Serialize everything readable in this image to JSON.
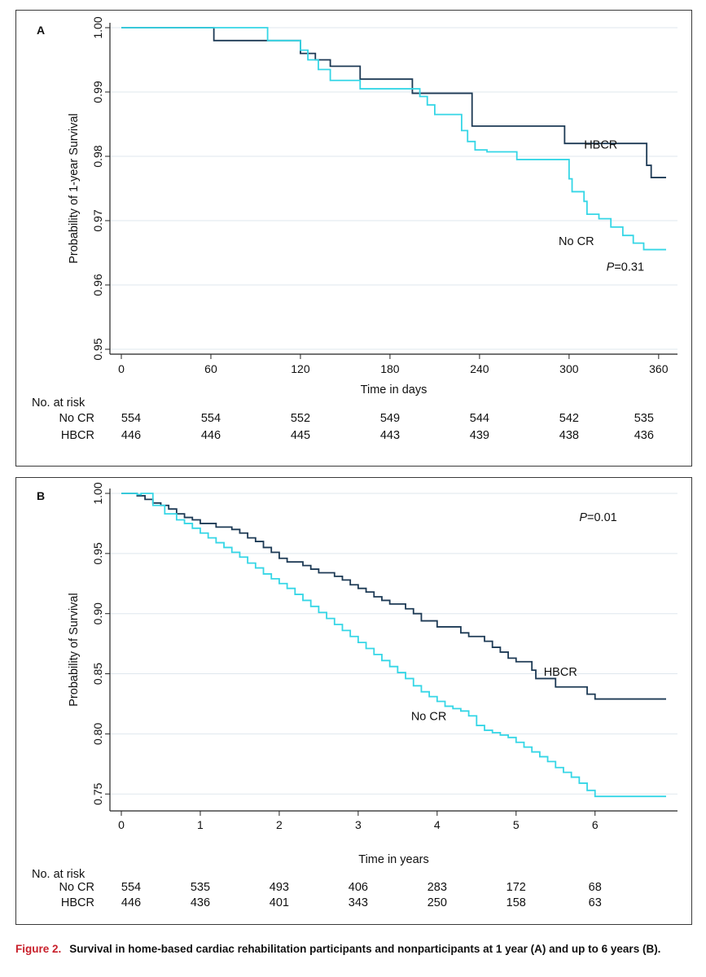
{
  "caption": {
    "figure_label": "Figure 2.",
    "text": "Survival in home-based cardiac rehabilitation participants and nonparticipants at 1 year (A) and up to 6 years (B)."
  },
  "colors": {
    "hbcr": "#1d3a55",
    "nocr": "#35d6e6",
    "grid": "#dfe7ee",
    "axis": "#222222"
  },
  "chart_data": [
    {
      "panel": "A",
      "type": "line",
      "step": true,
      "xlabel": "Time in days",
      "ylabel": "Probability of 1-year Survival",
      "xlim": [
        0,
        365
      ],
      "ylim": [
        0.95,
        1.0
      ],
      "xticks": [
        0,
        60,
        120,
        180,
        240,
        300,
        360
      ],
      "xtick_labels": [
        "0",
        "60",
        "120",
        "180",
        "240",
        "300",
        "360"
      ],
      "yticks": [
        0.95,
        0.96,
        0.97,
        0.98,
        0.99,
        1.0
      ],
      "ytick_labels": [
        "0.95",
        "0.96",
        "0.97",
        "0.98",
        "0.99",
        "1.00"
      ],
      "series": [
        {
          "name": "HBCR",
          "color_key": "hbcr",
          "x": [
            0,
            60,
            62,
            118,
            120,
            130,
            140,
            160,
            195,
            230,
            235,
            295,
            297,
            350,
            352,
            355,
            365
          ],
          "y": [
            1.0,
            1.0,
            0.998,
            0.998,
            0.996,
            0.995,
            0.994,
            0.992,
            0.9898,
            0.9898,
            0.9847,
            0.9847,
            0.982,
            0.982,
            0.9786,
            0.9767,
            0.9767
          ]
        },
        {
          "name": "No CR",
          "color_key": "nocr",
          "x": [
            0,
            95,
            98,
            118,
            120,
            125,
            132,
            140,
            160,
            195,
            200,
            205,
            210,
            218,
            228,
            232,
            237,
            245,
            265,
            295,
            300,
            302,
            305,
            310,
            312,
            320,
            328,
            336,
            343,
            350,
            365
          ],
          "y": [
            1.0,
            1.0,
            0.998,
            0.998,
            0.9965,
            0.995,
            0.9935,
            0.9918,
            0.9905,
            0.9905,
            0.9893,
            0.988,
            0.9865,
            0.9865,
            0.984,
            0.9823,
            0.981,
            0.9807,
            0.9795,
            0.9795,
            0.9765,
            0.9745,
            0.9745,
            0.973,
            0.971,
            0.9703,
            0.969,
            0.9677,
            0.9665,
            0.9655,
            0.9655
          ]
        }
      ],
      "annotations": [
        {
          "text": "HBCR",
          "x": 310,
          "y": 0.9812
        },
        {
          "text": "No CR",
          "x": 293,
          "y": 0.9662
        },
        {
          "text": "P=0.31",
          "x": 325,
          "y": 0.9622
        }
      ],
      "risk_table": {
        "title": "No. at risk",
        "rows": [
          {
            "label": "No CR",
            "values": [
              "554",
              "554",
              "552",
              "549",
              "544",
              "542",
              "535"
            ]
          },
          {
            "label": "HBCR",
            "values": [
              "446",
              "446",
              "445",
              "443",
              "439",
              "438",
              "436"
            ]
          }
        ]
      }
    },
    {
      "panel": "B",
      "type": "line",
      "step": true,
      "xlabel": "Time in years",
      "ylabel": "Probability of Survival",
      "xlim": [
        0,
        6.9
      ],
      "ylim": [
        0.74,
        1.0
      ],
      "xticks": [
        0,
        1,
        2,
        3,
        4,
        5,
        6
      ],
      "xtick_labels": [
        "0",
        "1",
        "2",
        "3",
        "4",
        "5",
        "6"
      ],
      "yticks": [
        0.75,
        0.8,
        0.85,
        0.9,
        0.95,
        1.0
      ],
      "ytick_labels": [
        "0.75",
        "0.80",
        "0.85",
        "0.90",
        "0.95",
        "1.00"
      ],
      "series": [
        {
          "name": "HBCR",
          "color_key": "hbcr",
          "x": [
            0,
            0.2,
            0.3,
            0.4,
            0.5,
            0.6,
            0.7,
            0.8,
            0.9,
            1.0,
            1.2,
            1.4,
            1.5,
            1.6,
            1.7,
            1.8,
            1.9,
            2.0,
            2.1,
            2.3,
            2.4,
            2.5,
            2.7,
            2.8,
            2.9,
            3.0,
            3.1,
            3.2,
            3.3,
            3.4,
            3.6,
            3.7,
            3.8,
            4.0,
            4.3,
            4.4,
            4.6,
            4.7,
            4.8,
            4.9,
            5.0,
            5.2,
            5.25,
            5.5,
            5.9,
            6.0,
            6.9
          ],
          "y": [
            1.0,
            0.998,
            0.995,
            0.992,
            0.99,
            0.987,
            0.983,
            0.98,
            0.978,
            0.975,
            0.972,
            0.97,
            0.967,
            0.963,
            0.96,
            0.955,
            0.951,
            0.946,
            0.943,
            0.94,
            0.937,
            0.934,
            0.931,
            0.928,
            0.924,
            0.921,
            0.918,
            0.914,
            0.911,
            0.908,
            0.904,
            0.9,
            0.894,
            0.889,
            0.884,
            0.881,
            0.877,
            0.872,
            0.868,
            0.863,
            0.86,
            0.853,
            0.846,
            0.839,
            0.833,
            0.829,
            0.829
          ]
        },
        {
          "name": "No CR",
          "color_key": "nocr",
          "x": [
            0,
            0.2,
            0.25,
            0.4,
            0.55,
            0.7,
            0.8,
            0.9,
            1.0,
            1.1,
            1.2,
            1.3,
            1.4,
            1.5,
            1.6,
            1.7,
            1.8,
            1.9,
            2.0,
            2.1,
            2.2,
            2.3,
            2.4,
            2.5,
            2.6,
            2.7,
            2.8,
            2.9,
            3.0,
            3.1,
            3.2,
            3.3,
            3.4,
            3.5,
            3.6,
            3.7,
            3.8,
            3.9,
            4.0,
            4.1,
            4.2,
            4.3,
            4.4,
            4.5,
            4.6,
            4.7,
            4.8,
            4.9,
            5.0,
            5.1,
            5.2,
            5.3,
            5.4,
            5.5,
            5.6,
            5.7,
            5.8,
            5.9,
            6.0,
            6.9
          ],
          "y": [
            1.0,
            0.999,
            1.0,
            0.99,
            0.983,
            0.978,
            0.975,
            0.971,
            0.967,
            0.963,
            0.959,
            0.955,
            0.951,
            0.947,
            0.942,
            0.938,
            0.933,
            0.929,
            0.925,
            0.921,
            0.916,
            0.911,
            0.906,
            0.901,
            0.896,
            0.891,
            0.886,
            0.881,
            0.876,
            0.871,
            0.866,
            0.861,
            0.856,
            0.851,
            0.846,
            0.84,
            0.835,
            0.831,
            0.827,
            0.823,
            0.821,
            0.819,
            0.815,
            0.807,
            0.803,
            0.801,
            0.799,
            0.797,
            0.793,
            0.789,
            0.785,
            0.781,
            0.777,
            0.772,
            0.768,
            0.764,
            0.759,
            0.753,
            0.748,
            0.748
          ]
        }
      ],
      "annotations": [
        {
          "text": "HBCR",
          "x": 5.35,
          "y": 0.8485
        },
        {
          "text": "No CR",
          "x": 3.67,
          "y": 0.8115
        },
        {
          "text": "P=0.01",
          "x": 5.8,
          "y": 0.977
        }
      ],
      "risk_table": {
        "title": "No. at risk",
        "rows": [
          {
            "label": "No CR",
            "values": [
              "554",
              "535",
              "493",
              "406",
              "283",
              "172",
              "68"
            ]
          },
          {
            "label": "HBCR",
            "values": [
              "446",
              "436",
              "401",
              "343",
              "250",
              "158",
              "63"
            ]
          }
        ]
      }
    }
  ]
}
